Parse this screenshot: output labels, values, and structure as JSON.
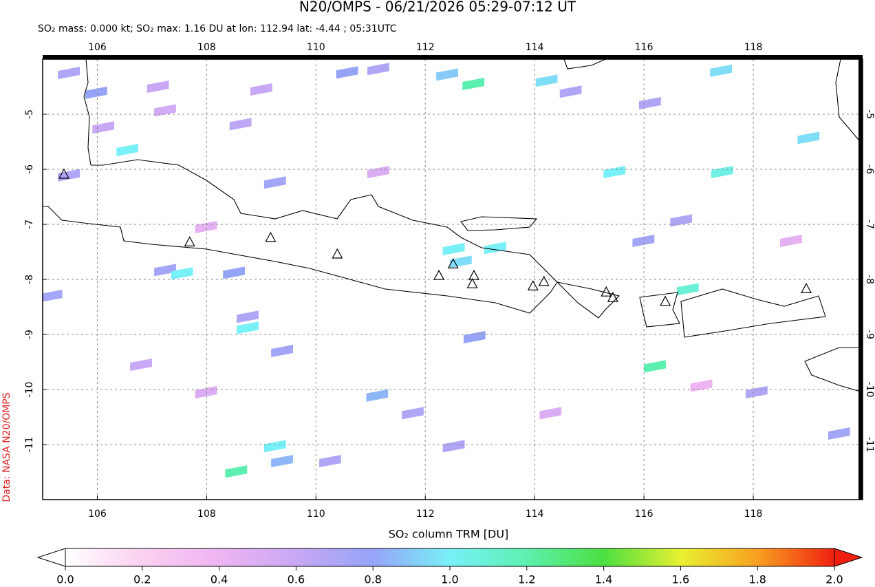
{
  "chart_data": {
    "type": "map",
    "title": "N20/OMPS - 06/21/2026 05:29-07:12 UT",
    "subtitle": "SO₂ mass: 0.000 kt; SO₂ max: 1.16 DU at lon: 112.94 lat: -4.44 ; 05:31UTC",
    "side_label": "Data: NASA N20/OMPS",
    "colorbar_label": "SO₂ column TRM [DU]",
    "xlim": [
      105,
      120
    ],
    "ylim": [
      -12,
      -4
    ],
    "xticks": [
      106,
      108,
      110,
      112,
      114,
      116,
      118
    ],
    "yticks": [
      -5,
      -6,
      -7,
      -8,
      -9,
      -10,
      -11
    ],
    "grid": true,
    "clim": [
      0,
      2
    ],
    "cticks": [
      {
        "value": 0,
        "label": "0.0"
      },
      0.2,
      0.4,
      0.6,
      0.8,
      {
        "value": 1,
        "label": "1.0"
      },
      1.2,
      1.4,
      1.6,
      1.8,
      {
        "value": 2,
        "label": "2.0"
      }
    ],
    "colors": [
      "#ffffff",
      "#fbd0f0",
      "#eeb4f2",
      "#c8a8f4",
      "#96a4f8",
      "#78f0f8",
      "#5cf0b0",
      "#4ce040",
      "#e8f030",
      "#f8a020",
      "#f02010"
    ],
    "volcano_color": "#000000",
    "volcanoes": {
      "lon": [
        105.39,
        107.69,
        109.17,
        110.39,
        112.25,
        112.51,
        112.89,
        112.86,
        113.97,
        114.17,
        115.31,
        115.43,
        116.39,
        118.97
      ],
      "lat": [
        -6.1,
        -7.33,
        -7.25,
        -7.55,
        -7.94,
        -7.73,
        -7.94,
        -8.09,
        -8.13,
        -8.05,
        -8.24,
        -8.34,
        -8.41,
        -8.18
      ]
    },
    "pixels": {
      "lon": [
        105.48,
        105.98,
        106.55,
        106.11,
        105.48,
        107.11,
        107.24,
        108.62,
        109.25,
        109.0,
        110.57,
        111.14,
        112.4,
        112.88,
        114.22,
        114.66,
        116.11,
        117.41,
        119.01,
        115.46,
        117.43,
        113.28,
        112.65,
        112.52,
        107.24,
        107.55,
        108.5,
        108.75,
        108.75,
        109.38,
        105.16,
        111.12,
        112.9,
        116.8,
        116.2,
        109.25,
        109.38,
        108.54,
        110.26,
        112.52,
        111.77,
        115.99,
        116.68,
        118.06,
        119.57,
        106.8,
        107.99,
        114.29,
        117.05,
        118.69,
        111.14,
        107.99
      ],
      "lat": [
        -4.25,
        -4.61,
        -5.65,
        -5.24,
        -6.11,
        -4.5,
        -4.93,
        -5.18,
        -6.24,
        -4.55,
        -4.24,
        -4.18,
        -4.28,
        -4.45,
        -4.39,
        -4.59,
        -4.8,
        -4.21,
        -5.43,
        -6.05,
        -6.05,
        -7.43,
        -7.68,
        -7.45,
        -7.83,
        -7.89,
        -7.88,
        -8.68,
        -8.88,
        -9.3,
        -8.3,
        -10.11,
        -9.05,
        -8.18,
        -9.58,
        -11.03,
        -11.3,
        -11.49,
        -11.3,
        -11.03,
        -10.43,
        -7.3,
        -6.93,
        -10.05,
        -10.8,
        -9.55,
        -10.05,
        -10.43,
        -9.93,
        -7.3,
        -6.05,
        -7.05
      ],
      "values": [
        0.7,
        0.8,
        1.0,
        0.6,
        0.7,
        0.6,
        0.55,
        0.65,
        0.75,
        0.6,
        0.8,
        0.7,
        0.9,
        1.2,
        0.95,
        0.7,
        0.7,
        0.95,
        0.95,
        1.0,
        1.05,
        1.0,
        0.95,
        1.0,
        0.75,
        1.0,
        0.8,
        0.7,
        1.0,
        0.75,
        0.75,
        0.85,
        0.8,
        1.1,
        1.2,
        1.0,
        0.85,
        1.2,
        0.7,
        0.7,
        0.7,
        0.75,
        0.7,
        0.7,
        0.75,
        0.6,
        0.5,
        0.5,
        0.4,
        0.45,
        0.5,
        0.45
      ]
    }
  }
}
